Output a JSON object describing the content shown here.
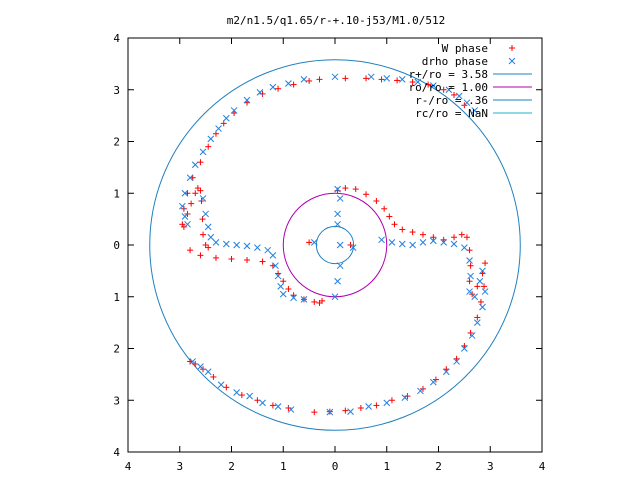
{
  "chart_data": {
    "type": "scatter",
    "title": "m2/n1.5/q1.65/r-+.10-j53/M1.0/512",
    "xlabel": "",
    "ylabel": "",
    "xlim": [
      -4,
      4
    ],
    "ylim": [
      -4,
      4
    ],
    "x_tick_labels": [
      "4",
      "3",
      "2",
      "1",
      "0",
      "1",
      "2",
      "3",
      "4"
    ],
    "y_tick_labels": [
      "4",
      "3",
      "2",
      "1",
      "0",
      "1",
      "2",
      "3",
      "4"
    ],
    "grid": false,
    "legend_position": "top-right",
    "legend": [
      {
        "label": "W phase",
        "marker": "+",
        "color": "#ff0000"
      },
      {
        "label": "drho phase",
        "marker": "x",
        "color": "#2080e0"
      },
      {
        "label": "r+/ro = 3.58",
        "color": "#2080c0"
      },
      {
        "label": "ro/ro = 1.00",
        "color": "#b000b0"
      },
      {
        "label": "r-/ro = .36",
        "color": "#2080c0"
      },
      {
        "label": "rc/ro = NaN",
        "color": "#20b0d0"
      }
    ],
    "circles": [
      {
        "name": "r+/ro = 3.58",
        "radius": 3.58,
        "color": "#2080c0"
      },
      {
        "name": "ro/ro = 1.00",
        "radius": 1.0,
        "color": "#b000b0"
      },
      {
        "name": "r-/ro = .36",
        "radius": 0.36,
        "color": "#2080c0"
      }
    ],
    "series": [
      {
        "name": "W phase",
        "marker": "+",
        "color": "#ff0000",
        "points": [
          [
            -0.3,
            3.2
          ],
          [
            0.2,
            3.22
          ],
          [
            0.6,
            3.22
          ],
          [
            0.9,
            3.2
          ],
          [
            1.2,
            3.18
          ],
          [
            1.5,
            3.15
          ],
          [
            1.8,
            3.1
          ],
          [
            2.1,
            3.0
          ],
          [
            2.3,
            2.9
          ],
          [
            2.5,
            2.7
          ],
          [
            -0.5,
            3.17
          ],
          [
            -0.8,
            3.1
          ],
          [
            -1.1,
            3.02
          ],
          [
            -1.4,
            2.92
          ],
          [
            -1.7,
            2.75
          ],
          [
            -1.95,
            2.55
          ],
          [
            -2.15,
            2.35
          ],
          [
            -2.3,
            2.15
          ],
          [
            -2.45,
            1.9
          ],
          [
            -2.6,
            1.6
          ],
          [
            -2.75,
            1.3
          ],
          [
            -2.85,
            1.0
          ],
          [
            -2.92,
            0.7
          ],
          [
            -2.95,
            0.4
          ],
          [
            -2.92,
            0.35
          ],
          [
            -2.85,
            0.6
          ],
          [
            -2.78,
            0.8
          ],
          [
            -2.7,
            1.0
          ],
          [
            -2.65,
            1.1
          ],
          [
            -2.6,
            1.05
          ],
          [
            -2.58,
            0.85
          ],
          [
            -2.56,
            0.5
          ],
          [
            -2.55,
            0.2
          ],
          [
            -2.5,
            0.0
          ],
          [
            -2.45,
            -0.05
          ],
          [
            -2.8,
            -0.1
          ],
          [
            -2.6,
            -0.2
          ],
          [
            -2.3,
            -0.25
          ],
          [
            -2.0,
            -0.27
          ],
          [
            -1.7,
            -0.29
          ],
          [
            -1.4,
            -0.32
          ],
          [
            -1.2,
            -0.4
          ],
          [
            -1.1,
            -0.55
          ],
          [
            -1.0,
            -0.7
          ],
          [
            -0.9,
            -0.85
          ],
          [
            -0.8,
            -0.97
          ],
          [
            -0.6,
            -1.05
          ],
          [
            -0.4,
            -1.1
          ],
          [
            -0.3,
            -1.12
          ],
          [
            -0.25,
            -1.08
          ],
          [
            0.05,
            1.05
          ],
          [
            0.2,
            1.1
          ],
          [
            0.4,
            1.08
          ],
          [
            0.6,
            0.98
          ],
          [
            0.8,
            0.85
          ],
          [
            0.95,
            0.7
          ],
          [
            1.05,
            0.55
          ],
          [
            1.15,
            0.4
          ],
          [
            1.3,
            0.3
          ],
          [
            1.5,
            0.25
          ],
          [
            1.7,
            0.2
          ],
          [
            1.9,
            0.15
          ],
          [
            2.1,
            0.1
          ],
          [
            2.3,
            0.15
          ],
          [
            2.45,
            0.2
          ],
          [
            2.55,
            0.15
          ],
          [
            2.6,
            -0.1
          ],
          [
            2.62,
            -0.4
          ],
          [
            2.6,
            -0.7
          ],
          [
            2.65,
            -0.95
          ],
          [
            2.75,
            -0.8
          ],
          [
            2.85,
            -0.55
          ],
          [
            2.9,
            -0.35
          ],
          [
            2.88,
            -0.8
          ],
          [
            2.82,
            -1.1
          ],
          [
            2.75,
            -1.4
          ],
          [
            2.62,
            -1.7
          ],
          [
            2.5,
            -1.95
          ],
          [
            2.35,
            -2.2
          ],
          [
            2.15,
            -2.4
          ],
          [
            1.95,
            -2.6
          ],
          [
            1.7,
            -2.78
          ],
          [
            1.4,
            -2.92
          ],
          [
            1.1,
            -3.0
          ],
          [
            0.8,
            -3.1
          ],
          [
            0.5,
            -3.15
          ],
          [
            0.2,
            -3.2
          ],
          [
            -0.1,
            -3.22
          ],
          [
            -0.4,
            -3.23
          ],
          [
            -0.9,
            -3.15
          ],
          [
            -1.2,
            -3.1
          ],
          [
            -1.5,
            -3.0
          ],
          [
            -1.8,
            -2.9
          ],
          [
            -2.1,
            -2.75
          ],
          [
            -2.35,
            -2.55
          ],
          [
            -2.55,
            -2.4
          ],
          [
            -2.7,
            -2.3
          ],
          [
            -2.8,
            -2.25
          ],
          [
            -0.5,
            0.05
          ],
          [
            0.3,
            0.0
          ]
        ]
      },
      {
        "name": "drho phase",
        "marker": "x",
        "color": "#2080e0",
        "points": [
          [
            0.0,
            3.25
          ],
          [
            0.7,
            3.25
          ],
          [
            1.0,
            3.22
          ],
          [
            1.3,
            3.2
          ],
          [
            1.6,
            3.15
          ],
          [
            1.9,
            3.08
          ],
          [
            2.2,
            3.0
          ],
          [
            2.4,
            2.88
          ],
          [
            2.55,
            2.75
          ],
          [
            2.7,
            2.6
          ],
          [
            -0.6,
            3.2
          ],
          [
            -0.9,
            3.12
          ],
          [
            -1.2,
            3.05
          ],
          [
            -1.45,
            2.95
          ],
          [
            -1.7,
            2.8
          ],
          [
            -1.95,
            2.6
          ],
          [
            -2.1,
            2.45
          ],
          [
            -2.25,
            2.25
          ],
          [
            -2.4,
            2.05
          ],
          [
            -2.55,
            1.8
          ],
          [
            -2.7,
            1.55
          ],
          [
            -2.8,
            1.3
          ],
          [
            -2.9,
            1.0
          ],
          [
            -2.95,
            0.75
          ],
          [
            -2.9,
            0.55
          ],
          [
            -2.85,
            0.4
          ],
          [
            -2.55,
            0.9
          ],
          [
            -2.5,
            0.6
          ],
          [
            -2.45,
            0.35
          ],
          [
            -2.4,
            0.15
          ],
          [
            -2.3,
            0.05
          ],
          [
            -2.1,
            0.02
          ],
          [
            -1.9,
            0.0
          ],
          [
            -1.7,
            -0.02
          ],
          [
            -1.5,
            -0.05
          ],
          [
            -1.3,
            -0.1
          ],
          [
            -1.2,
            -0.2
          ],
          [
            -1.15,
            -0.4
          ],
          [
            -1.1,
            -0.6
          ],
          [
            -1.05,
            -0.8
          ],
          [
            -1.0,
            -0.95
          ],
          [
            -0.8,
            -1.02
          ],
          [
            -0.6,
            -1.05
          ],
          [
            0.1,
            0.0
          ],
          [
            0.1,
            -0.4
          ],
          [
            0.05,
            -0.7
          ],
          [
            0.0,
            -1.0
          ],
          [
            0.05,
            1.08
          ],
          [
            0.1,
            0.9
          ],
          [
            0.05,
            0.6
          ],
          [
            0.05,
            0.4
          ],
          [
            0.9,
            0.1
          ],
          [
            1.1,
            0.05
          ],
          [
            1.3,
            0.02
          ],
          [
            1.5,
            0.0
          ],
          [
            1.7,
            0.05
          ],
          [
            1.9,
            0.08
          ],
          [
            2.1,
            0.05
          ],
          [
            2.3,
            0.02
          ],
          [
            2.5,
            -0.05
          ],
          [
            2.6,
            -0.3
          ],
          [
            2.62,
            -0.6
          ],
          [
            2.6,
            -0.9
          ],
          [
            2.7,
            -1.0
          ],
          [
            2.8,
            -0.7
          ],
          [
            2.85,
            -0.5
          ],
          [
            2.9,
            -0.9
          ],
          [
            2.85,
            -1.2
          ],
          [
            2.75,
            -1.5
          ],
          [
            2.65,
            -1.75
          ],
          [
            2.5,
            -2.0
          ],
          [
            2.35,
            -2.25
          ],
          [
            2.15,
            -2.45
          ],
          [
            1.9,
            -2.65
          ],
          [
            1.65,
            -2.82
          ],
          [
            1.35,
            -2.95
          ],
          [
            1.0,
            -3.05
          ],
          [
            0.65,
            -3.12
          ],
          [
            0.3,
            -3.22
          ],
          [
            -0.1,
            -3.23
          ],
          [
            -0.85,
            -3.18
          ],
          [
            -1.1,
            -3.12
          ],
          [
            -1.4,
            -3.05
          ],
          [
            -1.65,
            -2.92
          ],
          [
            -1.9,
            -2.85
          ],
          [
            -2.2,
            -2.7
          ],
          [
            -2.45,
            -2.45
          ],
          [
            -2.6,
            -2.35
          ],
          [
            -2.75,
            -2.25
          ],
          [
            -0.4,
            0.05
          ],
          [
            0.35,
            -0.05
          ]
        ]
      }
    ]
  }
}
